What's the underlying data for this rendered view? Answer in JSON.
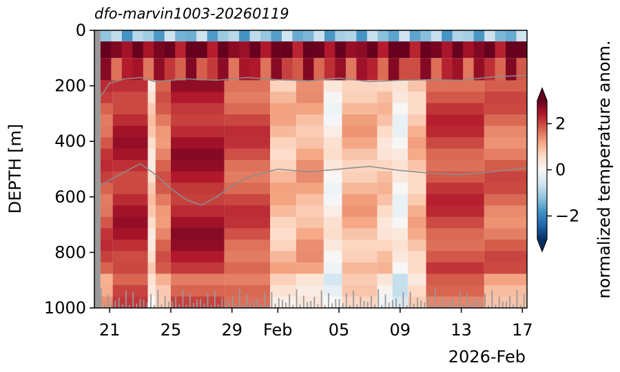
{
  "chart_data": {
    "type": "heatmap",
    "title": "dfo-marvin1003-20260119",
    "ylabel": "DEPTH [m]",
    "xlabel_offset": "2026-Feb",
    "colorbar_label": "normalized temperature anom.",
    "ylim": [
      0,
      1000
    ],
    "y_inverted": true,
    "y_ticks": [
      0,
      200,
      400,
      600,
      800,
      1000
    ],
    "x_domain_days": [
      0,
      28.3
    ],
    "x_ticks": [
      {
        "label": "21",
        "day": 1
      },
      {
        "label": "25",
        "day": 5
      },
      {
        "label": "29",
        "day": 9
      },
      {
        "label": "Feb",
        "day": 12
      },
      {
        "label": "05",
        "day": 16
      },
      {
        "label": "09",
        "day": 20
      },
      {
        "label": "13",
        "day": 24
      },
      {
        "label": "17",
        "day": 28
      }
    ],
    "colorbar": {
      "range": [
        -3,
        3
      ],
      "ticks": [
        -2,
        0,
        2
      ],
      "colormap": "RdBu_r",
      "extend": "both",
      "stops": [
        "#053061",
        "#2166ac",
        "#4393c3",
        "#92c5de",
        "#d1e5f0",
        "#f7f7f7",
        "#fddbc7",
        "#f4a582",
        "#d6604d",
        "#b2182b",
        "#67001f"
      ]
    },
    "missing_color": "#999999",
    "contour_color": "#8c8c8c",
    "column_anomalies": [
      {
        "day_start": 0.4,
        "day_end": 1.2,
        "anom": 1.9
      },
      {
        "day_start": 1.2,
        "day_end": 3.5,
        "anom": 2.3
      },
      {
        "day_start": 3.5,
        "day_end": 4.0,
        "anom": 0.6
      },
      {
        "day_start": 4.0,
        "day_end": 5.0,
        "anom": 1.6
      },
      {
        "day_start": 5.0,
        "day_end": 8.5,
        "anom": 2.4
      },
      {
        "day_start": 8.5,
        "day_end": 11.5,
        "anom": 1.9
      },
      {
        "day_start": 11.5,
        "day_end": 13.2,
        "anom": 0.9
      },
      {
        "day_start": 13.2,
        "day_end": 15.0,
        "anom": 1.1
      },
      {
        "day_start": 15.0,
        "day_end": 16.2,
        "anom": 0.2
      },
      {
        "day_start": 16.2,
        "day_end": 18.5,
        "anom": 1.0
      },
      {
        "day_start": 18.5,
        "day_end": 19.5,
        "anom": 0.7
      },
      {
        "day_start": 19.5,
        "day_end": 20.5,
        "anom": 0.1
      },
      {
        "day_start": 20.5,
        "day_end": 21.7,
        "anom": 0.9
      },
      {
        "day_start": 21.7,
        "day_end": 25.5,
        "anom": 2.0
      },
      {
        "day_start": 25.5,
        "day_end": 28.3,
        "anom": 1.7
      }
    ],
    "surface_layer": [
      {
        "depth_top": 0,
        "depth_bottom": 40,
        "anom": -1.2
      },
      {
        "depth_top": 40,
        "depth_bottom": 100,
        "anom": 2.9
      },
      {
        "depth_top": 100,
        "depth_bottom": 180,
        "anom": 2.2
      }
    ],
    "contour_upper": {
      "days": [
        0.4,
        1,
        2,
        3,
        4,
        6,
        8,
        10,
        12,
        14,
        16,
        18,
        20,
        22,
        24,
        26,
        28.3
      ],
      "depths": [
        240,
        190,
        175,
        170,
        185,
        175,
        180,
        170,
        178,
        182,
        172,
        185,
        180,
        178,
        180,
        168,
        162
      ]
    },
    "contour_lower": {
      "days": [
        0.4,
        1,
        2,
        3,
        4,
        5,
        6,
        7,
        8,
        9,
        10,
        11,
        12,
        14,
        16,
        18,
        20,
        22,
        24,
        26,
        28.3
      ],
      "depths": [
        560,
        540,
        510,
        480,
        520,
        570,
        610,
        630,
        600,
        560,
        530,
        515,
        500,
        510,
        500,
        490,
        505,
        515,
        520,
        510,
        495
      ]
    }
  }
}
